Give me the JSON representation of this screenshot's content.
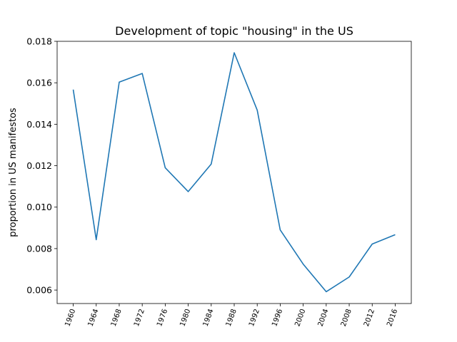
{
  "chart_data": {
    "type": "line",
    "title": "Development of topic \"housing\" in the US",
    "xlabel": "",
    "ylabel": "proportion in US manifestos",
    "x": [
      1960,
      1964,
      1968,
      1972,
      1976,
      1980,
      1984,
      1988,
      1992,
      1996,
      2000,
      2004,
      2008,
      2012,
      2016
    ],
    "x_tick_labels": [
      "1960",
      "1964",
      "1968",
      "1972",
      "1976",
      "1980",
      "1984",
      "1988",
      "1992",
      "1996",
      "2000",
      "2004",
      "2008",
      "2012",
      "2016"
    ],
    "y_tick_values": [
      0.006,
      0.008,
      0.01,
      0.012,
      0.014,
      0.016,
      0.018
    ],
    "y_tick_labels": [
      "0.006",
      "0.008",
      "0.010",
      "0.012",
      "0.014",
      "0.016",
      "0.018"
    ],
    "series": [
      {
        "values": [
          0.01567,
          0.00843,
          0.01603,
          0.01645,
          0.0119,
          0.01075,
          0.01208,
          0.01745,
          0.01468,
          0.0089,
          0.00725,
          0.00592,
          0.00663,
          0.00822,
          0.00867
        ],
        "color": "#1f77b4"
      }
    ],
    "xlim": [
      1957.2,
      2018.8
    ],
    "ylim": [
      0.00535,
      0.018
    ],
    "grid": false
  }
}
